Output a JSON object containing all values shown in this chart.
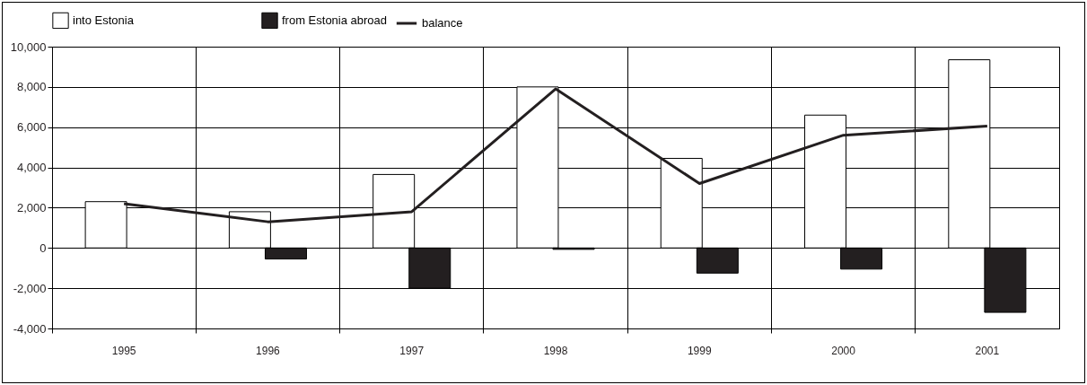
{
  "chart_data": {
    "type": "bar",
    "categories": [
      "1995",
      "1996",
      "1997",
      "1998",
      "1999",
      "2000",
      "2001"
    ],
    "series": [
      {
        "name": "into Estonia",
        "color": "#ffffff",
        "values": [
          2300,
          1800,
          3650,
          8000,
          4450,
          6600,
          9350
        ]
      },
      {
        "name": "from Estonia abroad",
        "color": "#231f20",
        "values": [
          null,
          -550,
          -2000,
          -70,
          -1250,
          -1050,
          -3200
        ]
      },
      {
        "name": "balance",
        "type": "line",
        "color": "#231f20",
        "values": [
          2200,
          1300,
          1800,
          7900,
          3200,
          5600,
          6050
        ]
      }
    ],
    "ylim": [
      -4000,
      10000
    ],
    "yticks": [
      {
        "value": -4000,
        "label": "-4,000"
      },
      {
        "value": -2000,
        "label": "-2,000"
      },
      0,
      {
        "value": 2000,
        "label": "2,000"
      },
      {
        "value": 4000,
        "label": "4,000"
      },
      {
        "value": 6000,
        "label": "6,000"
      },
      {
        "value": 8000,
        "label": "8,000"
      },
      {
        "value": 10000,
        "label": "10,000"
      }
    ],
    "grid": true,
    "legend": "top"
  }
}
